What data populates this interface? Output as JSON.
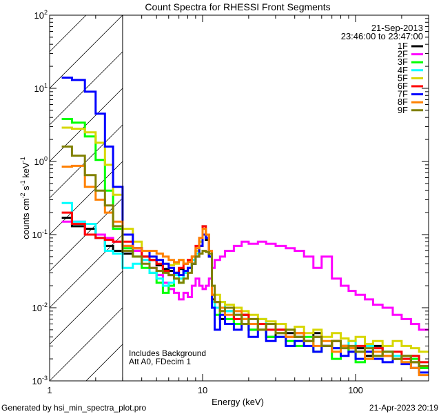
{
  "chart_data": {
    "type": "line",
    "title": "Count Spectra for RHESSI Front Segments",
    "xlabel": "Energy (keV)",
    "ylabel_parts": [
      "counts cm",
      "-2",
      " s",
      "-1",
      " keV",
      "-1"
    ],
    "xscale": "log",
    "yscale": "log",
    "xlim": [
      1,
      300
    ],
    "ylim": [
      0.001,
      100
    ],
    "x_tick_labels": [
      {
        "value": 1,
        "label": "1"
      },
      {
        "value": 10,
        "label": "10"
      },
      {
        "value": 100,
        "label": "100"
      }
    ],
    "y_tick_labels": [
      {
        "value": 0.001,
        "base": "10",
        "exp": "-3"
      },
      {
        "value": 0.01,
        "base": "10",
        "exp": "-2"
      },
      {
        "value": 0.1,
        "base": "10",
        "exp": "-1"
      },
      {
        "value": 1,
        "base": "10",
        "exp": "0"
      },
      {
        "value": 10,
        "base": "10",
        "exp": "1"
      },
      {
        "value": 100,
        "base": "10",
        "exp": "2"
      }
    ],
    "hatched_region_max_energy": 3,
    "date": "21-Sep-2013",
    "time_range": "23:46:00 to 23:47:00",
    "notes": [
      "Includes Background",
      "Att A0, FDecim 1"
    ],
    "legend_position": "top-right",
    "energy_edges": [
      1.2,
      1.4,
      1.7,
      2,
      2.3,
      2.6,
      3,
      3.5,
      4,
      4.5,
      5,
      5.5,
      6,
      6.5,
      7,
      7.5,
      8,
      8.5,
      9,
      9.5,
      10,
      10.5,
      11,
      11.5,
      12,
      13,
      14,
      16,
      18,
      20,
      23,
      26,
      30,
      35,
      40,
      46,
      53,
      60,
      70,
      80,
      90,
      100,
      115,
      130,
      150,
      175,
      200,
      230,
      260,
      300
    ],
    "series": [
      {
        "name": "1F",
        "color": "#000000",
        "values": [
          0.17,
          0.13,
          0.12,
          0.09,
          0.07,
          0.06,
          0.055,
          0.06,
          0.05,
          0.045,
          0.038,
          0.034,
          0.032,
          0.03,
          0.034,
          0.03,
          0.035,
          0.04,
          0.05,
          0.07,
          0.1,
          0.085,
          0.05,
          0.013,
          0.01,
          0.007,
          0.009,
          0.006,
          0.008,
          0.005,
          0.006,
          0.004,
          0.005,
          0.0045,
          0.004,
          0.0035,
          0.0045,
          0.003,
          0.0035,
          0.003,
          0.0025,
          0.0028,
          0.0022,
          0.003,
          0.0025,
          0.002,
          0.0022,
          0.0018,
          0.0015
        ]
      },
      {
        "name": "2F",
        "color": "#ff00ff",
        "values": [
          0.15,
          0.15,
          0.1,
          0.1,
          0.09,
          0.08,
          0.07,
          0.06,
          0.045,
          0.035,
          0.028,
          0.022,
          0.018,
          0.016,
          0.013,
          0.016,
          0.014,
          0.02,
          0.025,
          0.02,
          0.018,
          0.02,
          0.025,
          0.035,
          0.045,
          0.05,
          0.06,
          0.07,
          0.08,
          0.075,
          0.08,
          0.075,
          0.07,
          0.065,
          0.06,
          0.05,
          0.035,
          0.05,
          0.025,
          0.02,
          0.017,
          0.015,
          0.013,
          0.011,
          0.01,
          0.008,
          0.007,
          0.006,
          0.005
        ]
      },
      {
        "name": "3F",
        "color": "#00ff00",
        "values": [
          3.8,
          3.4,
          2.2,
          1.05,
          0.4,
          0.12,
          0.065,
          0.05,
          0.035,
          0.03,
          0.022,
          0.016,
          0.02,
          0.025,
          0.022,
          0.03,
          0.035,
          0.04,
          0.06,
          0.08,
          0.1,
          0.09,
          0.06,
          0.012,
          0.008,
          0.01,
          0.007,
          0.006,
          0.007,
          0.005,
          0.005,
          0.004,
          0.004,
          0.0035,
          0.003,
          0.004,
          0.0025,
          0.003,
          0.002,
          0.003,
          0.0025,
          0.0018,
          0.002,
          0.0022,
          0.0025,
          0.002,
          0.0018,
          0.002,
          0.0015
        ]
      },
      {
        "name": "4F",
        "color": "#00ffff",
        "values": [
          0.27,
          0.15,
          0.14,
          0.09,
          0.06,
          0.055,
          0.035,
          0.04,
          0.045,
          0.03,
          0.025,
          0.02,
          0.022,
          0.028,
          0.025,
          0.03,
          0.035,
          0.045,
          0.055,
          0.08,
          0.13,
          0.1,
          0.06,
          0.012,
          0.01,
          0.012,
          0.009,
          0.008,
          0.007,
          0.006,
          0.007,
          0.005,
          0.0045,
          0.005,
          0.004,
          0.0035,
          0.004,
          0.003,
          0.0028,
          0.003,
          0.0035,
          0.0025,
          0.003,
          0.0028,
          0.0025,
          0.0022,
          0.002,
          0.0022,
          0.0018
        ]
      },
      {
        "name": "5F",
        "color": "#d7d700",
        "values": [
          2.9,
          2.8,
          2.5,
          1.8,
          0.9,
          0.35,
          0.12,
          0.08,
          0.06,
          0.05,
          0.045,
          0.04,
          0.038,
          0.04,
          0.045,
          0.04,
          0.045,
          0.05,
          0.06,
          0.08,
          0.12,
          0.1,
          0.06,
          0.02,
          0.015,
          0.012,
          0.011,
          0.01,
          0.009,
          0.008,
          0.007,
          0.0065,
          0.006,
          0.005,
          0.0055,
          0.0045,
          0.005,
          0.004,
          0.0045,
          0.0038,
          0.0035,
          0.004,
          0.0032,
          0.0035,
          0.003,
          0.0035,
          0.003,
          0.0028,
          0.0025
        ]
      },
      {
        "name": "6F",
        "color": "#ff0000",
        "values": [
          0.2,
          0.14,
          0.1,
          0.09,
          0.085,
          0.08,
          0.08,
          0.065,
          0.05,
          0.045,
          0.04,
          0.032,
          0.028,
          0.03,
          0.035,
          0.04,
          0.045,
          0.05,
          0.07,
          0.09,
          0.13,
          0.1,
          0.06,
          0.015,
          0.012,
          0.009,
          0.01,
          0.007,
          0.008,
          0.006,
          0.006,
          0.005,
          0.005,
          0.004,
          0.0045,
          0.0035,
          0.004,
          0.003,
          0.0035,
          0.003,
          0.0028,
          0.003,
          0.0025,
          0.0028,
          0.0022,
          0.0025,
          0.002,
          0.0022,
          0.0018
        ]
      },
      {
        "name": "7F",
        "color": "#0000ff",
        "values": [
          14,
          13,
          9,
          4.5,
          1.6,
          0.45,
          0.1,
          0.065,
          0.06,
          0.05,
          0.045,
          0.04,
          0.035,
          0.03,
          0.028,
          0.032,
          0.035,
          0.04,
          0.05,
          0.07,
          0.1,
          0.09,
          0.05,
          0.01,
          0.005,
          0.008,
          0.006,
          0.005,
          0.006,
          0.004,
          0.005,
          0.0035,
          0.004,
          0.003,
          0.0035,
          0.003,
          0.0025,
          0.003,
          0.0028,
          0.0022,
          0.0025,
          0.002,
          0.0025,
          0.002,
          0.0018,
          0.002,
          0.0017,
          0.0015,
          0.0013
        ]
      },
      {
        "name": "8F",
        "color": "#ff8000",
        "values": [
          0.85,
          0.87,
          0.45,
          0.3,
          0.2,
          0.15,
          0.07,
          0.065,
          0.06,
          0.06,
          0.055,
          0.05,
          0.045,
          0.042,
          0.045,
          0.04,
          0.042,
          0.05,
          0.065,
          0.09,
          0.12,
          0.1,
          0.06,
          0.015,
          0.012,
          0.01,
          0.008,
          0.009,
          0.007,
          0.006,
          0.005,
          0.006,
          0.0045,
          0.004,
          0.0045,
          0.0035,
          0.003,
          0.0035,
          0.0025,
          0.003,
          0.0028,
          0.0025,
          0.002,
          0.0025,
          0.0022,
          0.002,
          0.0018,
          0.0015,
          0.0012
        ]
      },
      {
        "name": "9F",
        "color": "#808000",
        "values": [
          1.6,
          1.2,
          0.65,
          0.4,
          0.25,
          0.13,
          0.06,
          0.05,
          0.04,
          0.035,
          0.032,
          0.03,
          0.028,
          0.025,
          0.022,
          0.025,
          0.03,
          0.04,
          0.05,
          0.055,
          0.06,
          0.058,
          0.055,
          0.02,
          0.012,
          0.009,
          0.01,
          0.008,
          0.006,
          0.007,
          0.005,
          0.006,
          0.0045,
          0.005,
          0.004,
          0.0035,
          0.004,
          0.003,
          0.0035,
          0.0028,
          0.003,
          0.0025,
          0.0028,
          0.0022,
          0.0025,
          0.002,
          0.0022,
          0.0018,
          0.0016
        ]
      }
    ]
  },
  "footer": {
    "generated_by": "Generated by hsi_min_spectra_plot.pro",
    "timestamp": "21-Apr-2023 20:19"
  }
}
